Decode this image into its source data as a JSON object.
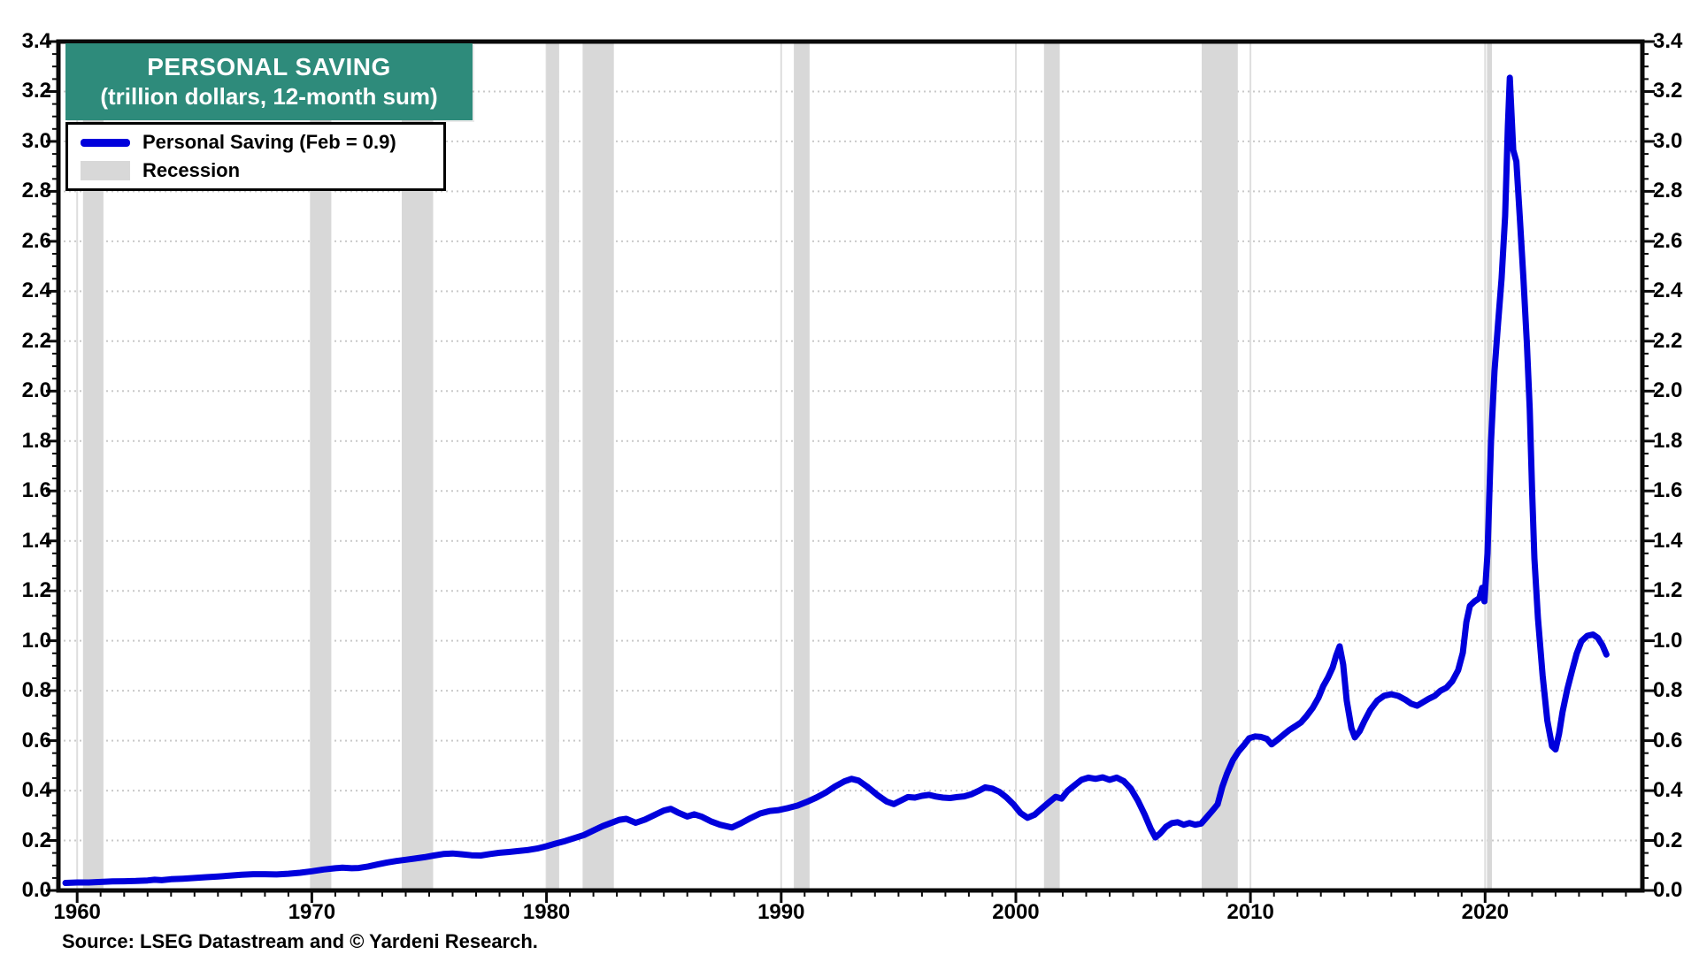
{
  "title": {
    "line1": "PERSONAL SAVING",
    "line2": "(trillion dollars, 12-month sum)"
  },
  "legend": [
    {
      "label": "Personal Saving (Feb = 0.9)",
      "swatch": "line"
    },
    {
      "label": "Recession",
      "swatch": "box"
    }
  ],
  "source": "Source: LSEG Datastream and © Yardeni Research.",
  "colors": {
    "line": "#0000dc",
    "recession": "#d8d8d8",
    "title_bg": "#2e8b7b",
    "title_text": "#ffffff",
    "frame": "#0a0a0a",
    "hgrid": "#c9c9c9",
    "vgrid": "#dedede",
    "label_text": "#000000"
  },
  "axes": {
    "y_tick_labels": [
      "0.0",
      "0.2",
      "0.4",
      "0.6",
      "0.8",
      "1.0",
      "1.2",
      "1.4",
      "1.6",
      "1.8",
      "2.0",
      "2.2",
      "2.4",
      "2.6",
      "2.8",
      "3.0",
      "3.2",
      "3.4"
    ],
    "x_tick_labels": [
      "1960",
      "1970",
      "1980",
      "1990",
      "2000",
      "2010",
      "2020"
    ]
  },
  "chart_data": {
    "type": "line",
    "title": "PERSONAL SAVING (trillion dollars, 12-month sum)",
    "xlabel": "",
    "ylabel": "trillion dollars",
    "xlim": [
      1959.2,
      2026.7
    ],
    "ylim": [
      0,
      3.4
    ],
    "y_major_step": 0.2,
    "y_minor_step": 0.05,
    "x_major_step": 10,
    "x_minor_step": 1,
    "grid": "dotted horizontal at 0.2 steps, light vertical at decades",
    "legend_position": "top-left",
    "series_name": "Personal Saving (Feb = 0.9)",
    "last_point_label": "Feb = 0.9",
    "recessions": [
      [
        1960.25,
        1961.12
      ],
      [
        1969.92,
        1970.83
      ],
      [
        1973.83,
        1975.17
      ],
      [
        1980.0,
        1980.54
      ],
      [
        1981.54,
        1982.87
      ],
      [
        1990.54,
        1991.21
      ],
      [
        2001.2,
        2001.87
      ],
      [
        2007.92,
        2009.46
      ],
      [
        2020.08,
        2020.29
      ]
    ],
    "points": [
      [
        1959.5,
        0.03
      ],
      [
        1960,
        0.032
      ],
      [
        1960.5,
        0.032
      ],
      [
        1961,
        0.034
      ],
      [
        1961.5,
        0.036
      ],
      [
        1962,
        0.037
      ],
      [
        1962.5,
        0.038
      ],
      [
        1963,
        0.04
      ],
      [
        1963.3,
        0.043
      ],
      [
        1963.6,
        0.041
      ],
      [
        1964,
        0.045
      ],
      [
        1964.5,
        0.047
      ],
      [
        1965,
        0.05
      ],
      [
        1965.5,
        0.053
      ],
      [
        1966,
        0.056
      ],
      [
        1966.5,
        0.059
      ],
      [
        1967,
        0.063
      ],
      [
        1967.5,
        0.065
      ],
      [
        1968,
        0.065
      ],
      [
        1968.5,
        0.064
      ],
      [
        1969,
        0.067
      ],
      [
        1969.5,
        0.071
      ],
      [
        1970,
        0.077
      ],
      [
        1970.5,
        0.084
      ],
      [
        1971,
        0.089
      ],
      [
        1971.3,
        0.091
      ],
      [
        1971.7,
        0.089
      ],
      [
        1972,
        0.09
      ],
      [
        1972.4,
        0.096
      ],
      [
        1972.8,
        0.104
      ],
      [
        1973.2,
        0.112
      ],
      [
        1973.6,
        0.118
      ],
      [
        1974,
        0.123
      ],
      [
        1974.4,
        0.128
      ],
      [
        1974.8,
        0.133
      ],
      [
        1975.2,
        0.14
      ],
      [
        1975.6,
        0.146
      ],
      [
        1976,
        0.148
      ],
      [
        1976.4,
        0.145
      ],
      [
        1976.8,
        0.141
      ],
      [
        1977.2,
        0.14
      ],
      [
        1977.6,
        0.146
      ],
      [
        1978,
        0.151
      ],
      [
        1978.4,
        0.154
      ],
      [
        1978.8,
        0.158
      ],
      [
        1979.2,
        0.162
      ],
      [
        1979.6,
        0.168
      ],
      [
        1980,
        0.177
      ],
      [
        1980.4,
        0.188
      ],
      [
        1980.8,
        0.198
      ],
      [
        1981.2,
        0.21
      ],
      [
        1981.6,
        0.222
      ],
      [
        1982,
        0.24
      ],
      [
        1982.4,
        0.258
      ],
      [
        1982.8,
        0.272
      ],
      [
        1983.1,
        0.283
      ],
      [
        1983.4,
        0.287
      ],
      [
        1983.8,
        0.271
      ],
      [
        1984.2,
        0.284
      ],
      [
        1984.6,
        0.302
      ],
      [
        1985.0,
        0.32
      ],
      [
        1985.3,
        0.327
      ],
      [
        1985.6,
        0.312
      ],
      [
        1986.0,
        0.296
      ],
      [
        1986.3,
        0.305
      ],
      [
        1986.6,
        0.296
      ],
      [
        1987.0,
        0.277
      ],
      [
        1987.4,
        0.263
      ],
      [
        1987.9,
        0.252
      ],
      [
        1988.3,
        0.27
      ],
      [
        1988.7,
        0.29
      ],
      [
        1989.1,
        0.308
      ],
      [
        1989.5,
        0.318
      ],
      [
        1989.9,
        0.322
      ],
      [
        1990.3,
        0.33
      ],
      [
        1990.7,
        0.34
      ],
      [
        1991.1,
        0.355
      ],
      [
        1991.5,
        0.372
      ],
      [
        1991.9,
        0.392
      ],
      [
        1992.3,
        0.417
      ],
      [
        1992.7,
        0.437
      ],
      [
        1993.0,
        0.447
      ],
      [
        1993.3,
        0.44
      ],
      [
        1993.7,
        0.413
      ],
      [
        1994.1,
        0.382
      ],
      [
        1994.5,
        0.356
      ],
      [
        1994.8,
        0.346
      ],
      [
        1995.1,
        0.36
      ],
      [
        1995.4,
        0.374
      ],
      [
        1995.7,
        0.372
      ],
      [
        1996.0,
        0.379
      ],
      [
        1996.3,
        0.383
      ],
      [
        1996.6,
        0.376
      ],
      [
        1996.9,
        0.372
      ],
      [
        1997.2,
        0.37
      ],
      [
        1997.5,
        0.374
      ],
      [
        1997.8,
        0.377
      ],
      [
        1998.1,
        0.385
      ],
      [
        1998.4,
        0.398
      ],
      [
        1998.7,
        0.413
      ],
      [
        1999.0,
        0.408
      ],
      [
        1999.3,
        0.395
      ],
      [
        1999.6,
        0.373
      ],
      [
        1999.9,
        0.345
      ],
      [
        2000.2,
        0.31
      ],
      [
        2000.5,
        0.291
      ],
      [
        2000.8,
        0.303
      ],
      [
        2001.1,
        0.328
      ],
      [
        2001.4,
        0.352
      ],
      [
        2001.7,
        0.375
      ],
      [
        2001.95,
        0.368
      ],
      [
        2002.2,
        0.398
      ],
      [
        2002.5,
        0.421
      ],
      [
        2002.8,
        0.443
      ],
      [
        2003.1,
        0.452
      ],
      [
        2003.4,
        0.447
      ],
      [
        2003.7,
        0.453
      ],
      [
        2004.0,
        0.443
      ],
      [
        2004.3,
        0.452
      ],
      [
        2004.6,
        0.438
      ],
      [
        2004.9,
        0.408
      ],
      [
        2005.2,
        0.36
      ],
      [
        2005.5,
        0.302
      ],
      [
        2005.75,
        0.247
      ],
      [
        2005.95,
        0.212
      ],
      [
        2006.15,
        0.228
      ],
      [
        2006.4,
        0.255
      ],
      [
        2006.65,
        0.27
      ],
      [
        2006.9,
        0.273
      ],
      [
        2007.15,
        0.263
      ],
      [
        2007.4,
        0.27
      ],
      [
        2007.65,
        0.263
      ],
      [
        2007.9,
        0.268
      ],
      [
        2008.15,
        0.295
      ],
      [
        2008.4,
        0.322
      ],
      [
        2008.6,
        0.345
      ],
      [
        2008.8,
        0.415
      ],
      [
        2009.0,
        0.468
      ],
      [
        2009.25,
        0.522
      ],
      [
        2009.5,
        0.558
      ],
      [
        2009.75,
        0.585
      ],
      [
        2009.95,
        0.61
      ],
      [
        2010.2,
        0.617
      ],
      [
        2010.45,
        0.615
      ],
      [
        2010.7,
        0.607
      ],
      [
        2010.9,
        0.585
      ],
      [
        2011.15,
        0.603
      ],
      [
        2011.4,
        0.623
      ],
      [
        2011.65,
        0.642
      ],
      [
        2011.9,
        0.657
      ],
      [
        2012.15,
        0.673
      ],
      [
        2012.4,
        0.7
      ],
      [
        2012.65,
        0.731
      ],
      [
        2012.9,
        0.772
      ],
      [
        2013.1,
        0.818
      ],
      [
        2013.3,
        0.852
      ],
      [
        2013.5,
        0.893
      ],
      [
        2013.65,
        0.94
      ],
      [
        2013.8,
        0.978
      ],
      [
        2013.95,
        0.905
      ],
      [
        2014.1,
        0.76
      ],
      [
        2014.3,
        0.65
      ],
      [
        2014.45,
        0.613
      ],
      [
        2014.65,
        0.638
      ],
      [
        2014.85,
        0.678
      ],
      [
        2015.1,
        0.722
      ],
      [
        2015.4,
        0.76
      ],
      [
        2015.7,
        0.78
      ],
      [
        2016.0,
        0.786
      ],
      [
        2016.3,
        0.779
      ],
      [
        2016.6,
        0.764
      ],
      [
        2016.85,
        0.748
      ],
      [
        2017.1,
        0.74
      ],
      [
        2017.35,
        0.754
      ],
      [
        2017.6,
        0.768
      ],
      [
        2017.85,
        0.779
      ],
      [
        2018.1,
        0.8
      ],
      [
        2018.35,
        0.812
      ],
      [
        2018.6,
        0.838
      ],
      [
        2018.85,
        0.882
      ],
      [
        2019.05,
        0.952
      ],
      [
        2019.2,
        1.075
      ],
      [
        2019.35,
        1.14
      ],
      [
        2019.55,
        1.158
      ],
      [
        2019.75,
        1.17
      ],
      [
        2019.87,
        1.212
      ],
      [
        2019.97,
        1.158
      ],
      [
        2020.1,
        1.35
      ],
      [
        2020.25,
        1.8
      ],
      [
        2020.4,
        2.08
      ],
      [
        2020.55,
        2.27
      ],
      [
        2020.7,
        2.45
      ],
      [
        2020.85,
        2.7
      ],
      [
        2020.97,
        3.06
      ],
      [
        2021.05,
        3.255
      ],
      [
        2021.12,
        3.12
      ],
      [
        2021.2,
        2.965
      ],
      [
        2021.33,
        2.92
      ],
      [
        2021.48,
        2.69
      ],
      [
        2021.63,
        2.45
      ],
      [
        2021.78,
        2.19
      ],
      [
        2021.9,
        1.93
      ],
      [
        2022.0,
        1.6
      ],
      [
        2022.1,
        1.33
      ],
      [
        2022.25,
        1.09
      ],
      [
        2022.45,
        0.86
      ],
      [
        2022.65,
        0.68
      ],
      [
        2022.85,
        0.578
      ],
      [
        2023.0,
        0.565
      ],
      [
        2023.15,
        0.628
      ],
      [
        2023.3,
        0.715
      ],
      [
        2023.5,
        0.805
      ],
      [
        2023.7,
        0.878
      ],
      [
        2023.9,
        0.948
      ],
      [
        2024.1,
        0.998
      ],
      [
        2024.35,
        1.02
      ],
      [
        2024.6,
        1.025
      ],
      [
        2024.8,
        1.012
      ],
      [
        2025.0,
        0.982
      ],
      [
        2025.17,
        0.945
      ]
    ]
  }
}
